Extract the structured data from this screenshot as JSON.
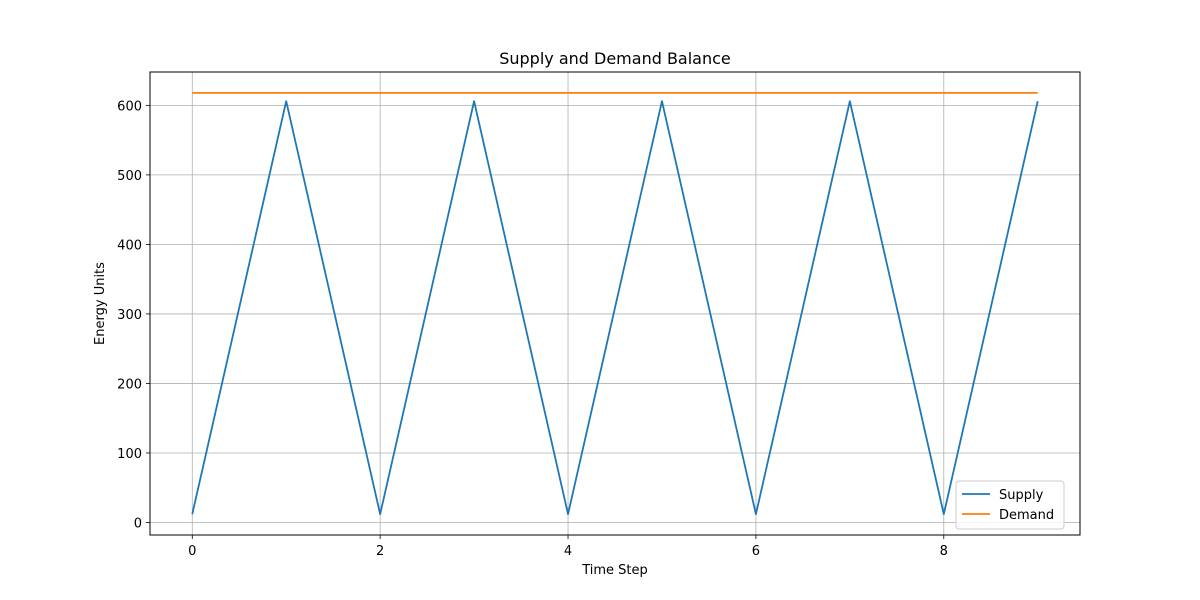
{
  "chart_data": {
    "type": "line",
    "title": "Supply and Demand Balance",
    "xlabel": "Time Step",
    "ylabel": "Energy Units",
    "x": [
      0,
      1,
      2,
      3,
      4,
      5,
      6,
      7,
      8,
      9
    ],
    "series": [
      {
        "name": "Supply",
        "color": "#1f77b4",
        "values": [
          12,
          606,
          12,
          606,
          12,
          606,
          12,
          606,
          12,
          606
        ]
      },
      {
        "name": "Demand",
        "color": "#ff7f0e",
        "values": [
          618,
          618,
          618,
          618,
          618,
          618,
          618,
          618,
          618,
          618
        ]
      }
    ],
    "xlim": [
      -0.45,
      9.45
    ],
    "ylim": [
      -18,
      648
    ],
    "xticks": [
      0,
      2,
      4,
      6,
      8
    ],
    "yticks": [
      0,
      100,
      200,
      300,
      400,
      500,
      600
    ],
    "grid": true,
    "legend_position": "lower-right"
  }
}
